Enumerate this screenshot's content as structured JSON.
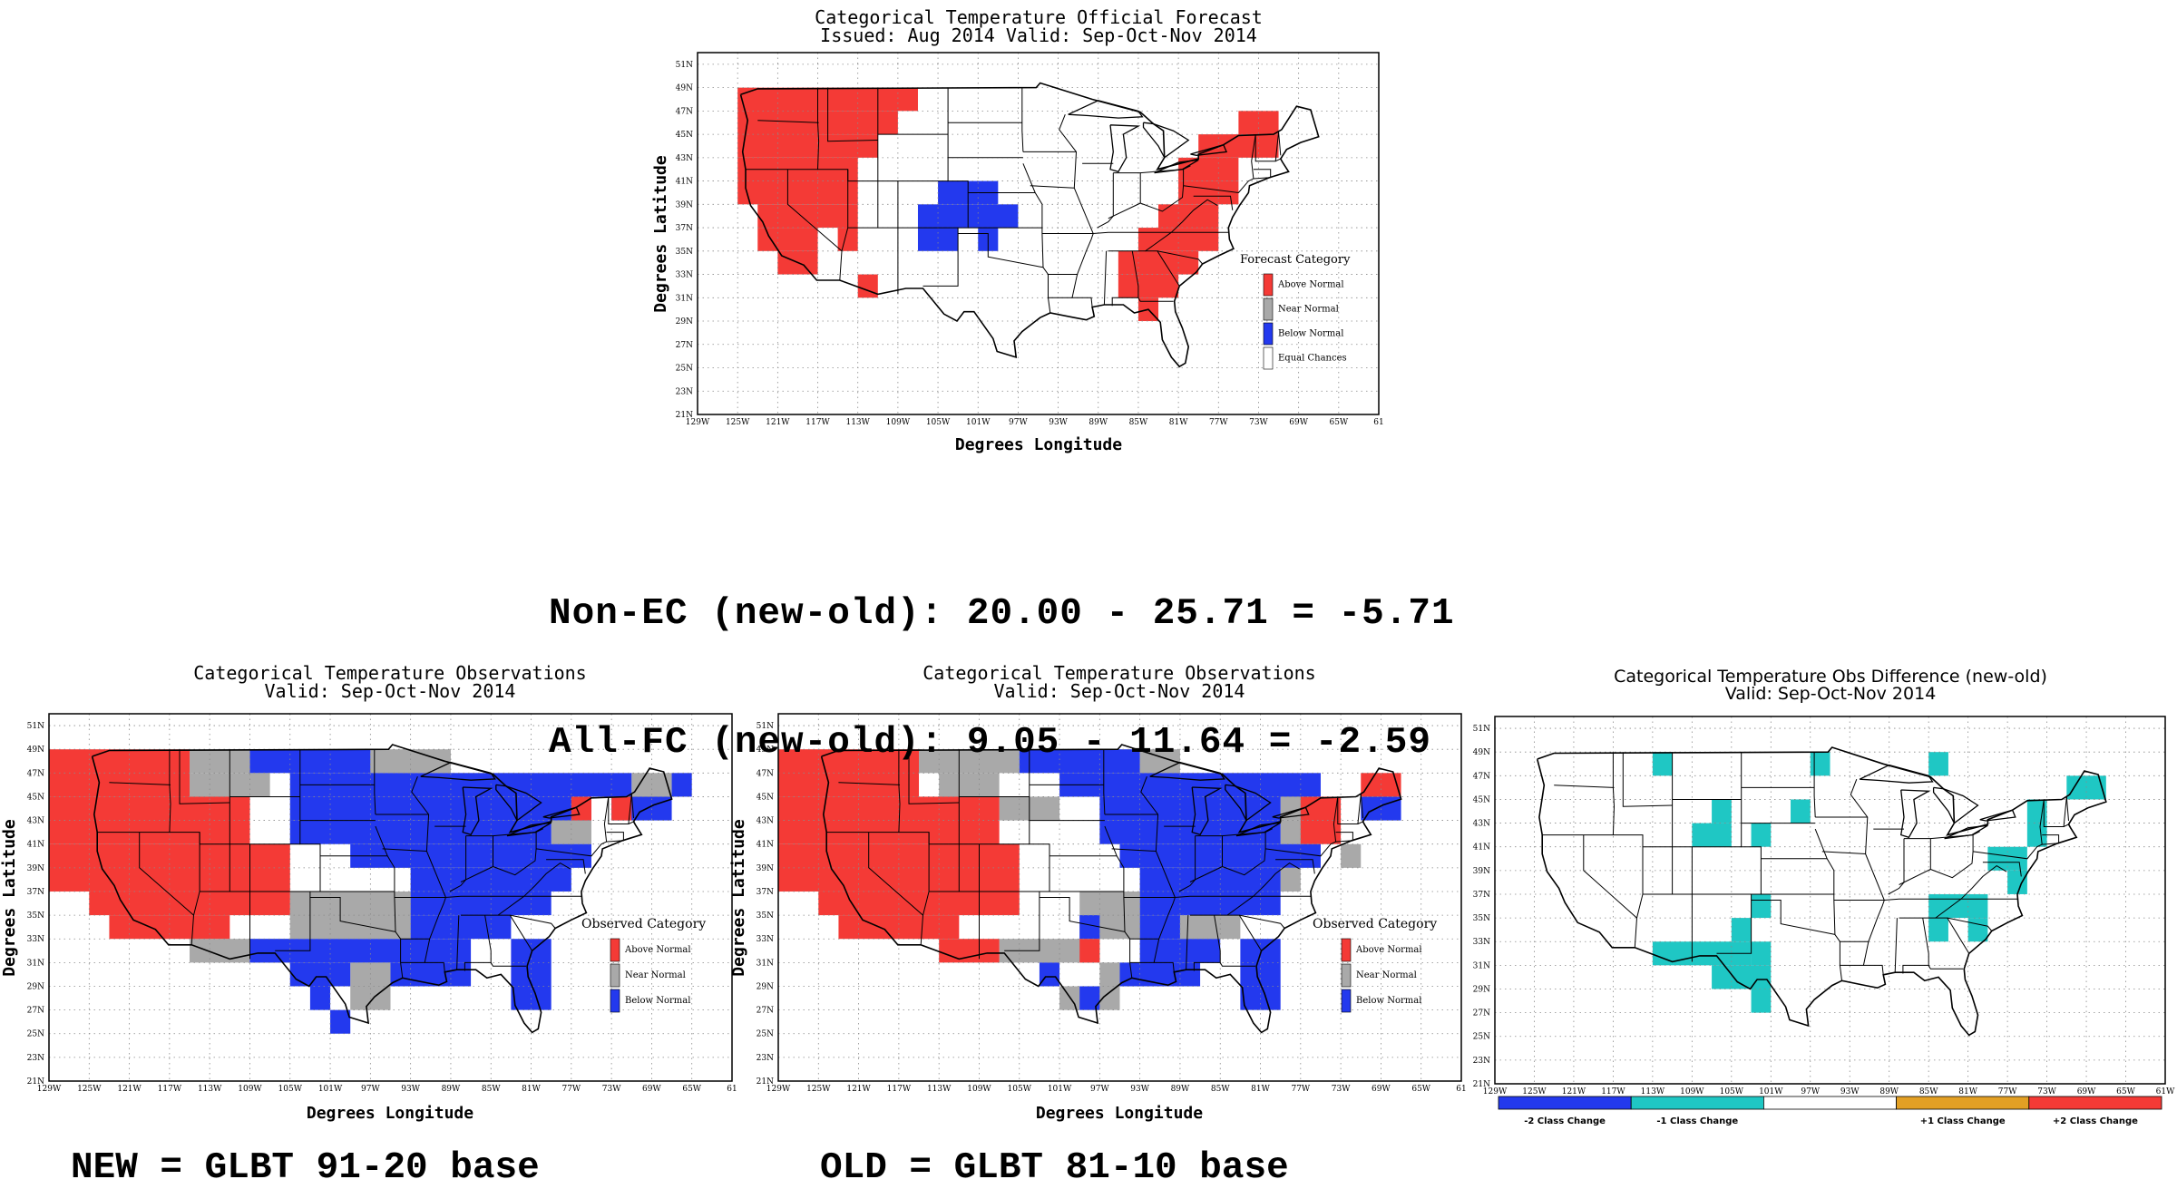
{
  "panels": {
    "forecast": {
      "title_line1": "Categorical Temperature Official Forecast",
      "title_line2": "Issued: Aug 2014 Valid: Sep-Oct-Nov 2014",
      "ylabel": "Degrees Latitude",
      "xlabel": "Degrees Longitude",
      "legend_title": "Forecast Category",
      "legend": [
        {
          "label": "Above Normal",
          "color": "#f43a36"
        },
        {
          "label": "Near Normal",
          "color": "#a9a9a9"
        },
        {
          "label": "Below Normal",
          "color": "#2339ee"
        },
        {
          "label": "Equal Chances",
          "color": "#ffffff"
        }
      ]
    },
    "obs_new": {
      "title_line1": "Categorical Temperature Observations",
      "title_line2": "Valid: Sep-Oct-Nov 2014",
      "ylabel": "Degrees Latitude",
      "xlabel": "Degrees Longitude",
      "legend_title": "Observed Category",
      "legend": [
        {
          "label": "Above Normal",
          "color": "#f43a36"
        },
        {
          "label": "Near Normal",
          "color": "#a9a9a9"
        },
        {
          "label": "Below Normal",
          "color": "#2339ee"
        }
      ]
    },
    "obs_old": {
      "title_line1": "Categorical Temperature Observations",
      "title_line2": "Valid: Sep-Oct-Nov 2014",
      "ylabel": "Degrees Latitude",
      "xlabel": "Degrees Longitude",
      "legend_title": "Observed Category",
      "legend": [
        {
          "label": "Above Normal",
          "color": "#f43a36"
        },
        {
          "label": "Near Normal",
          "color": "#a9a9a9"
        },
        {
          "label": "Below Normal",
          "color": "#2339ee"
        }
      ]
    },
    "difference": {
      "title_line1": "Categorical Temperature Obs Difference (new-old)",
      "title_line2": "Valid: Sep-Oct-Nov 2014",
      "colorbar": [
        {
          "label": "-2 Class Change",
          "color": "#2339ee"
        },
        {
          "label": "-1 Class Change",
          "color": "#1fc7c4"
        },
        {
          "label": "",
          "color": "#ffffff"
        },
        {
          "label": "+1 Class Change",
          "color": "#e3a024"
        },
        {
          "label": "+2 Class Change",
          "color": "#f43a36"
        }
      ]
    }
  },
  "axes": {
    "lon_ticks": [
      "129W",
      "125W",
      "121W",
      "117W",
      "113W",
      "109W",
      "105W",
      "101W",
      "97W",
      "93W",
      "89W",
      "85W",
      "81W",
      "77W",
      "73W",
      "69W",
      "65W",
      "61"
    ],
    "lon_ticks_diff": [
      "129W",
      "125W",
      "121W",
      "117W",
      "113W",
      "109W",
      "105W",
      "101W",
      "97W",
      "93W",
      "89W",
      "85W",
      "81W",
      "77W",
      "73W",
      "69W",
      "65W",
      "61W"
    ],
    "lat_ticks": [
      "21N",
      "23N",
      "25N",
      "27N",
      "29N",
      "31N",
      "33N",
      "35N",
      "37N",
      "39N",
      "41N",
      "43N",
      "45N",
      "47N",
      "49N",
      "51N"
    ]
  },
  "stats": {
    "line1": "Non-EC (new-old): 20.00 - 25.71 = -5.71",
    "line2": "All-FC (new-old): 9.05 - 11.64 = -2.59"
  },
  "captions": {
    "new": "NEW = GLBT 91-20 base",
    "old": "OLD = GLBT 81-10 base"
  },
  "colors": {
    "above": "#f43a36",
    "near": "#a9a9a9",
    "below": "#2339ee",
    "minus1": "#1fc7c4"
  },
  "maps": {
    "forecast": {
      "A": [
        [
          -125,
          49,
          -117,
          43
        ],
        [
          -117,
          49,
          -107,
          47
        ],
        [
          -117,
          47,
          -109,
          45
        ],
        [
          -117,
          45,
          -111,
          43
        ],
        [
          -125,
          43,
          -113,
          39
        ],
        [
          -123,
          39,
          -113,
          37
        ],
        [
          -123,
          37,
          -117,
          35
        ],
        [
          -121,
          35,
          -117,
          33
        ],
        [
          -115,
          37,
          -113,
          35
        ],
        [
          -113,
          33,
          -111,
          31
        ],
        [
          -75,
          47,
          -71,
          45
        ],
        [
          -79,
          45,
          -71,
          43
        ],
        [
          -81,
          43,
          -75,
          41
        ],
        [
          -81,
          41,
          -75,
          39
        ],
        [
          -83,
          39,
          -77,
          37
        ],
        [
          -85,
          37,
          -77,
          35
        ],
        [
          -87,
          35,
          -79,
          33
        ],
        [
          -87,
          33,
          -81,
          31
        ],
        [
          -85,
          31,
          -83,
          29
        ]
      ],
      "B": [
        [
          -105,
          41,
          -99,
          39
        ],
        [
          -107,
          39,
          -97,
          37
        ],
        [
          -107,
          37,
          -103,
          35
        ],
        [
          -101,
          37,
          -99,
          35
        ]
      ]
    },
    "obs_new": {
      "A": [
        [
          -129,
          49,
          -115,
          45
        ],
        [
          -129,
          45,
          -109,
          41
        ],
        [
          -129,
          41,
          -105,
          37
        ],
        [
          -125,
          37,
          -105,
          35
        ],
        [
          -123,
          35,
          -111,
          33
        ],
        [
          -113,
          45,
          -109,
          43
        ],
        [
          -77,
          45,
          -75,
          43
        ],
        [
          -73,
          45,
          -71,
          43
        ]
      ],
      "N": [
        [
          -115,
          49,
          -109,
          47
        ],
        [
          -115,
          47,
          -107,
          45
        ],
        [
          -97,
          49,
          -89,
          47
        ],
        [
          -105,
          37,
          -93,
          33
        ],
        [
          -115,
          33,
          -105,
          31
        ],
        [
          -99,
          31,
          -95,
          27
        ],
        [
          -83,
          45,
          -75,
          43
        ],
        [
          -79,
          43,
          -75,
          41
        ],
        [
          -87,
          37,
          -83,
          35
        ],
        [
          -71,
          47,
          -67,
          45
        ]
      ],
      "B": [
        [
          -109,
          49,
          -97,
          47
        ],
        [
          -105,
          47,
          -71,
          45
        ],
        [
          -105,
          45,
          -75,
          43
        ],
        [
          -105,
          43,
          -79,
          41
        ],
        [
          -99,
          41,
          -75,
          39
        ],
        [
          -93,
          39,
          -77,
          37
        ],
        [
          -93,
          37,
          -79,
          35
        ],
        [
          -93,
          35,
          -83,
          33
        ],
        [
          -109,
          33,
          -87,
          31
        ],
        [
          -105,
          31,
          -99,
          29
        ],
        [
          -95,
          31,
          -87,
          29
        ],
        [
          -103,
          29,
          -101,
          27
        ],
        [
          -101,
          27,
          -99,
          25
        ],
        [
          -83,
          33,
          -79,
          27
        ],
        [
          -73,
          45,
          -67,
          43
        ],
        [
          -67,
          47,
          -65,
          45
        ]
      ]
    },
    "obs_old": {
      "A": [
        [
          -129,
          49,
          -115,
          45
        ],
        [
          -129,
          45,
          -107,
          41
        ],
        [
          -129,
          41,
          -105,
          37
        ],
        [
          -125,
          37,
          -105,
          35
        ],
        [
          -123,
          35,
          -111,
          33
        ],
        [
          -113,
          33,
          -107,
          31
        ],
        [
          -113,
          45,
          -109,
          43
        ],
        [
          -99,
          33,
          -97,
          31
        ],
        [
          -77,
          45,
          -73,
          41
        ],
        [
          -71,
          47,
          -67,
          45
        ]
      ],
      "N": [
        [
          -115,
          49,
          -105,
          47
        ],
        [
          -113,
          47,
          -107,
          45
        ],
        [
          -107,
          45,
          -101,
          43
        ],
        [
          -93,
          49,
          -89,
          47
        ],
        [
          -99,
          37,
          -95,
          33
        ],
        [
          -107,
          33,
          -97,
          31
        ],
        [
          -97,
          31,
          -95,
          27
        ],
        [
          -101,
          29,
          -97,
          27
        ],
        [
          -97,
          37,
          -93,
          33
        ],
        [
          -89,
          35,
          -83,
          33
        ],
        [
          -79,
          45,
          -75,
          43
        ],
        [
          -79,
          43,
          -75,
          41
        ],
        [
          -73,
          41,
          -71,
          39
        ],
        [
          -79,
          39,
          -77,
          37
        ]
      ],
      "B": [
        [
          -105,
          49,
          -93,
          47
        ],
        [
          -101,
          47,
          -75,
          45
        ],
        [
          -97,
          45,
          -79,
          43
        ],
        [
          -97,
          43,
          -79,
          41
        ],
        [
          -95,
          41,
          -75,
          39
        ],
        [
          -93,
          39,
          -79,
          37
        ],
        [
          -93,
          37,
          -79,
          35
        ],
        [
          -93,
          35,
          -89,
          33
        ],
        [
          -93,
          33,
          -85,
          31
        ],
        [
          -95,
          31,
          -87,
          29
        ],
        [
          -83,
          33,
          -79,
          27
        ],
        [
          -99,
          35,
          -97,
          33
        ],
        [
          -103,
          31,
          -101,
          29
        ],
        [
          -99,
          29,
          -97,
          27
        ],
        [
          -71,
          45,
          -67,
          43
        ],
        [
          -69,
          43,
          -71,
          41
        ]
      ]
    },
    "difference": {
      "M": [
        [
          -113,
          49,
          -111,
          47
        ],
        [
          -97,
          49,
          -95,
          47
        ],
        [
          -85,
          49,
          -83,
          47
        ],
        [
          -71,
          47,
          -67,
          45
        ],
        [
          -107,
          45,
          -105,
          43
        ],
        [
          -99,
          45,
          -97,
          43
        ],
        [
          -75,
          45,
          -73,
          41
        ],
        [
          -109,
          43,
          -105,
          41
        ],
        [
          -103,
          43,
          -101,
          41
        ],
        [
          -79,
          41,
          -75,
          39
        ],
        [
          -77,
          39,
          -75,
          37
        ],
        [
          -103,
          37,
          -101,
          35
        ],
        [
          -85,
          37,
          -79,
          35
        ],
        [
          -105,
          35,
          -103,
          33
        ],
        [
          -85,
          35,
          -83,
          33
        ],
        [
          -81,
          35,
          -79,
          33
        ],
        [
          -113,
          33,
          -103,
          31
        ],
        [
          -103,
          33,
          -101,
          31
        ],
        [
          -107,
          31,
          -101,
          29
        ],
        [
          -103,
          29,
          -101,
          27
        ]
      ]
    }
  }
}
